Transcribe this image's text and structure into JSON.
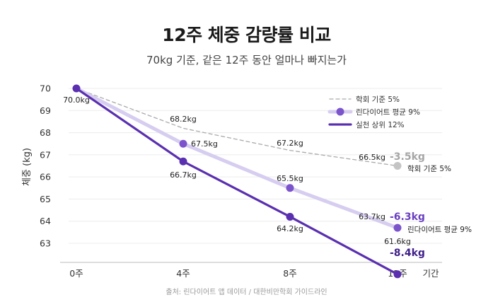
{
  "header": {
    "title": "12주 체중 감량률 비교",
    "subtitle": "70kg 기준, 같은 12주 동안 얼마나 빠지는가"
  },
  "footer": {
    "source": "출처: 린다이어트 앱 데이터 / 대한비만학회 가이드라인"
  },
  "chart_data": {
    "type": "line",
    "categories": [
      "0주",
      "4주",
      "8주",
      "12주"
    ],
    "x": [
      0,
      4,
      8,
      12
    ],
    "xlabel": "기간",
    "ylabel": "체중 (kg)",
    "ylim": [
      62.3,
      70.4
    ],
    "yticks": [
      "70",
      "69",
      "68",
      "67",
      "66",
      "65",
      "64",
      "63"
    ],
    "grid": true,
    "legend": "top-right",
    "series": [
      {
        "name": "학회 기준 5%",
        "values": [
          70.0,
          68.2,
          67.2,
          66.5
        ],
        "labels": [
          "70.0kg",
          "68.2kg",
          "67.2kg",
          "66.5kg"
        ],
        "color": "#aaaaaa",
        "style": "dashed",
        "end_label": "학회 기준 5%",
        "delta": "-3.5kg",
        "delta_color": "#a6a6a6"
      },
      {
        "name": "린다이어트 평균 9%",
        "values": [
          70.0,
          67.5,
          65.5,
          63.7
        ],
        "labels": [
          "70.0kg",
          "67.5kg",
          "65.5kg",
          "63.7kg"
        ],
        "color": "#d6cdf0",
        "marker_color": "#7b54cc",
        "style": "thick",
        "end_label": "린다이어트 평균 9%",
        "delta": "-6.3kg",
        "delta_color": "#6a3fc0"
      },
      {
        "name": "실천 상위 12%",
        "values": [
          70.0,
          66.7,
          64.2,
          61.6
        ],
        "labels": [
          "70.0kg",
          "66.7kg",
          "64.2kg",
          "61.6kg"
        ],
        "color": "#5a2fb0",
        "marker_color": "#5a2fb0",
        "style": "solid",
        "delta": "-8.4kg",
        "delta_color": "#3f1f8a"
      }
    ]
  }
}
